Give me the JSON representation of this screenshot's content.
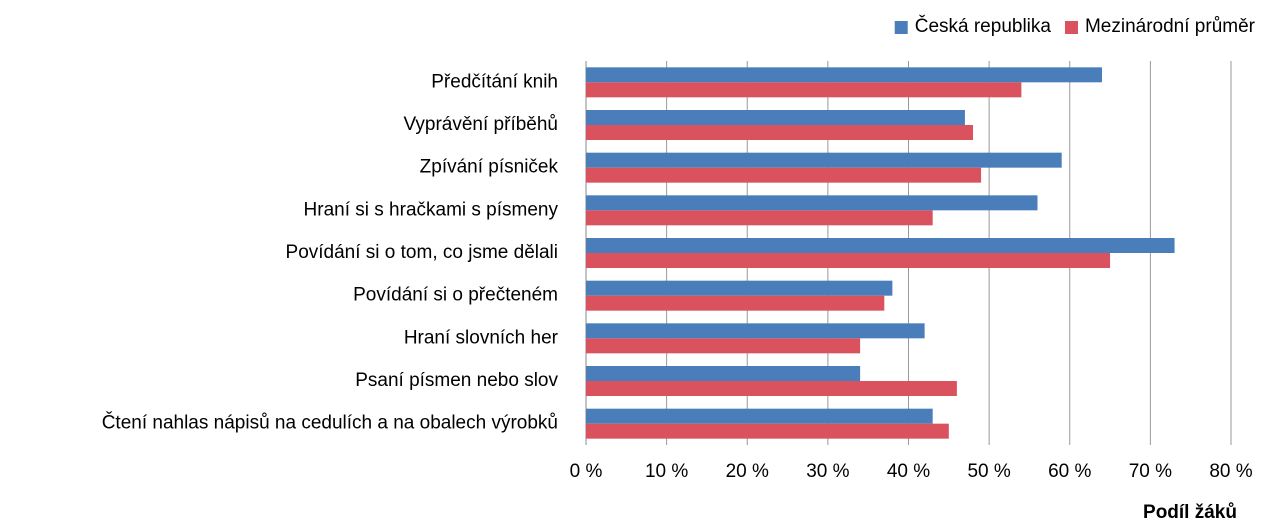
{
  "chart_data": {
    "type": "hbar",
    "categories": [
      "Předčítání knih",
      "Vyprávění příběhů",
      "Zpívání písniček",
      "Hraní si s hračkami s písmeny",
      "Povídání si o tom, co jsme dělali",
      "Povídání si o přečteném",
      "Hraní slovních her",
      "Psaní písmen nebo slov",
      "Čtení nahlas nápisů na cedulích a na obalech výrobků"
    ],
    "series": [
      {
        "name": "Česká republika",
        "color": "#4a7ebb",
        "values": [
          64,
          47,
          59,
          56,
          73,
          38,
          42,
          34,
          43
        ]
      },
      {
        "name": "Mezinárodní průměr",
        "color": "#d9525e",
        "values": [
          54,
          48,
          49,
          43,
          65,
          37,
          34,
          46,
          45
        ]
      }
    ],
    "xlim": [
      0,
      80
    ],
    "xticks": [
      {
        "value": 0,
        "label": "0 %"
      },
      {
        "value": 10,
        "label": "10 %"
      },
      {
        "value": 20,
        "label": "20 %"
      },
      {
        "value": 30,
        "label": "30 %"
      },
      {
        "value": 40,
        "label": "40 %"
      },
      {
        "value": 50,
        "label": "50 %"
      },
      {
        "value": 60,
        "label": "60 %"
      },
      {
        "value": 70,
        "label": "70 %"
      },
      {
        "value": 80,
        "label": "80 %"
      }
    ],
    "xlabel": "Podíl žáků",
    "grid": true,
    "legend": "top-right"
  }
}
